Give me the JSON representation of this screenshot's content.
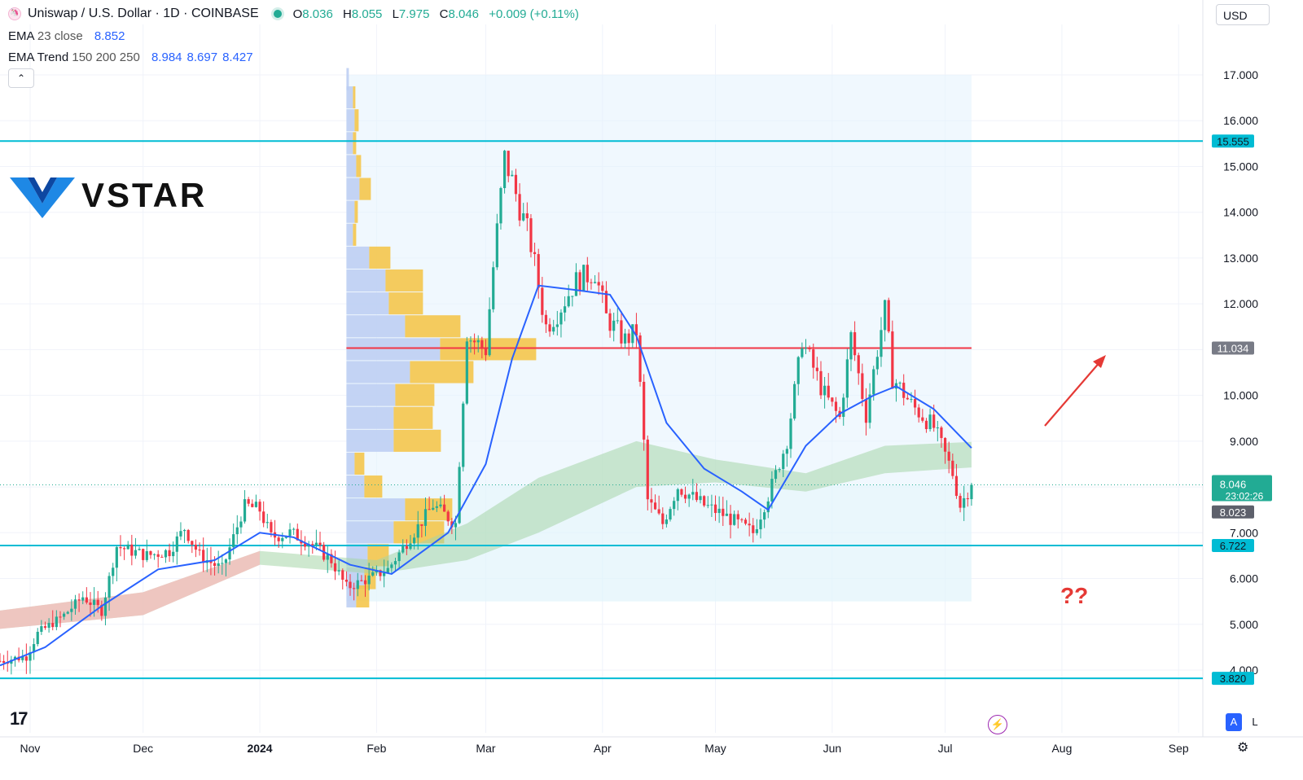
{
  "header": {
    "symbol": "Uniswap / U.S. Dollar · 1D · COINBASE",
    "o_label": "O",
    "o_value": "8.036",
    "h_label": "H",
    "h_value": "8.055",
    "l_label": "L",
    "l_value": "7.975",
    "c_label": "C",
    "c_value": "8.046",
    "change": "+0.009 (+0.11%)"
  },
  "indicators": {
    "ema_name": "EMA",
    "ema_params": "23 close",
    "ema_value": "8.852",
    "trend_name": "EMA Trend",
    "trend_params": "150 200 250",
    "trend_v1": "8.984",
    "trend_v2": "8.697",
    "trend_v3": "8.427"
  },
  "currency": "USD",
  "watermark": "VSTAR",
  "tv_logo": "17",
  "annotation": "??",
  "buttons": {
    "auto": "A",
    "log": "L"
  },
  "colors": {
    "up": "#22ab94",
    "down": "#f23645",
    "ema": "#2962ff",
    "level": "#00bcd4",
    "poc": "#f23645",
    "cloud": "#a5d6a7"
  },
  "chart_data": {
    "type": "candlestick",
    "y_axis": {
      "min": 3.8,
      "max": 17.0,
      "ticks": [
        "17.000",
        "16.000",
        "15.000",
        "14.000",
        "13.000",
        "12.000",
        "10.000",
        "9.000",
        "7.000",
        "6.000",
        "5.000",
        "4.000"
      ]
    },
    "x_axis": {
      "range": [
        "2023-10-24",
        "2024-09-07"
      ],
      "ticks": [
        {
          "label": "Nov",
          "date": "2023-11-01"
        },
        {
          "label": "Dec",
          "date": "2023-12-01"
        },
        {
          "label": "2024",
          "date": "2024-01-01",
          "bold": true
        },
        {
          "label": "Feb",
          "date": "2024-02-01"
        },
        {
          "label": "Mar",
          "date": "2024-03-01"
        },
        {
          "label": "Apr",
          "date": "2024-04-01"
        },
        {
          "label": "May",
          "date": "2024-05-01"
        },
        {
          "label": "Jun",
          "date": "2024-06-01"
        },
        {
          "label": "Jul",
          "date": "2024-07-01"
        },
        {
          "label": "Aug",
          "date": "2024-08-01"
        },
        {
          "label": "Sep",
          "date": "2024-09-01"
        }
      ]
    },
    "price_levels": [
      {
        "value": 15.555,
        "label": "15.555",
        "color": "#00bcd4"
      },
      {
        "value": 6.722,
        "label": "6.722",
        "color": "#00bcd4"
      },
      {
        "value": 3.82,
        "label": "3.820",
        "color": "#00bcd4"
      }
    ],
    "poc_level": {
      "value": 11.034,
      "label": "11.034"
    },
    "last_price": {
      "value": 8.046,
      "label": "8.046",
      "countdown": "23:02:26"
    },
    "prev_close": {
      "value": 8.023,
      "label": "8.023"
    },
    "close_series": [
      [
        "2023-10-24",
        4.2
      ],
      [
        "2023-10-31",
        4.3
      ],
      [
        "2023-11-03",
        4.8
      ],
      [
        "2023-11-10",
        5.2
      ],
      [
        "2023-11-15",
        5.6
      ],
      [
        "2023-11-20",
        5.3
      ],
      [
        "2023-11-24",
        6.7
      ],
      [
        "2023-12-02",
        6.5
      ],
      [
        "2023-12-08",
        6.6
      ],
      [
        "2023-12-12",
        7.1
      ],
      [
        "2023-12-16",
        6.5
      ],
      [
        "2023-12-22",
        6.2
      ],
      [
        "2023-12-28",
        7.6
      ],
      [
        "2024-01-01",
        7.5
      ],
      [
        "2024-01-04",
        6.9
      ],
      [
        "2024-01-09",
        7.0
      ],
      [
        "2024-01-14",
        6.8
      ],
      [
        "2024-01-20",
        6.4
      ],
      [
        "2024-01-24",
        5.8
      ],
      [
        "2024-01-30",
        6.0
      ],
      [
        "2024-02-04",
        6.2
      ],
      [
        "2024-02-10",
        6.9
      ],
      [
        "2024-02-16",
        7.6
      ],
      [
        "2024-02-22",
        7.2
      ],
      [
        "2024-02-25",
        11.3
      ],
      [
        "2024-03-01",
        11.0
      ],
      [
        "2024-03-03",
        12.8
      ],
      [
        "2024-03-06",
        15.2
      ],
      [
        "2024-03-09",
        14.4
      ],
      [
        "2024-03-13",
        13.3
      ],
      [
        "2024-03-17",
        11.5
      ],
      [
        "2024-03-20",
        11.8
      ],
      [
        "2024-03-25",
        12.5
      ],
      [
        "2024-03-30",
        12.7
      ],
      [
        "2024-04-02",
        11.7
      ],
      [
        "2024-04-07",
        11.2
      ],
      [
        "2024-04-10",
        11.4
      ],
      [
        "2024-04-13",
        7.7
      ],
      [
        "2024-04-17",
        7.2
      ],
      [
        "2024-04-21",
        8.0
      ],
      [
        "2024-04-28",
        7.6
      ],
      [
        "2024-05-03",
        7.4
      ],
      [
        "2024-05-11",
        7.0
      ],
      [
        "2024-05-15",
        7.8
      ],
      [
        "2024-05-20",
        9.0
      ],
      [
        "2024-05-24",
        11.2
      ],
      [
        "2024-05-30",
        10.0
      ],
      [
        "2024-06-03",
        9.5
      ],
      [
        "2024-06-06",
        11.3
      ],
      [
        "2024-06-10",
        9.6
      ],
      [
        "2024-06-15",
        11.9
      ],
      [
        "2024-06-17",
        10.4
      ],
      [
        "2024-06-22",
        9.8
      ],
      [
        "2024-06-28",
        9.3
      ],
      [
        "2024-07-03",
        8.3
      ],
      [
        "2024-07-05",
        7.6
      ],
      [
        "2024-07-08",
        8.046
      ]
    ],
    "ema23_series": [
      [
        "2023-10-24",
        4.1
      ],
      [
        "2023-11-05",
        4.5
      ],
      [
        "2023-11-20",
        5.4
      ],
      [
        "2023-12-05",
        6.2
      ],
      [
        "2023-12-20",
        6.4
      ],
      [
        "2024-01-01",
        7.0
      ],
      [
        "2024-01-10",
        6.9
      ],
      [
        "2024-01-25",
        6.3
      ],
      [
        "2024-02-05",
        6.1
      ],
      [
        "2024-02-20",
        7.0
      ],
      [
        "2024-03-01",
        8.5
      ],
      [
        "2024-03-08",
        10.8
      ],
      [
        "2024-03-15",
        12.4
      ],
      [
        "2024-03-25",
        12.3
      ],
      [
        "2024-04-03",
        12.2
      ],
      [
        "2024-04-10",
        11.3
      ],
      [
        "2024-04-18",
        9.4
      ],
      [
        "2024-04-28",
        8.4
      ],
      [
        "2024-05-08",
        7.9
      ],
      [
        "2024-05-15",
        7.5
      ],
      [
        "2024-05-25",
        8.9
      ],
      [
        "2024-06-03",
        9.6
      ],
      [
        "2024-06-12",
        10.0
      ],
      [
        "2024-06-18",
        10.2
      ],
      [
        "2024-06-28",
        9.7
      ],
      [
        "2024-07-08",
        8.852
      ]
    ],
    "trend_cloud": [
      [
        "2023-10-24",
        5.3,
        4.9
      ],
      [
        "2023-12-01",
        5.7,
        5.2
      ],
      [
        "2024-01-01",
        6.6,
        6.3
      ],
      [
        "2024-02-01",
        6.4,
        6.1
      ],
      [
        "2024-02-25",
        7.2,
        6.4
      ],
      [
        "2024-03-15",
        8.2,
        7.0
      ],
      [
        "2024-04-10",
        9.0,
        8.0
      ],
      [
        "2024-05-01",
        8.6,
        8.1
      ],
      [
        "2024-05-25",
        8.3,
        7.9
      ],
      [
        "2024-06-15",
        8.9,
        8.3
      ],
      [
        "2024-07-08",
        8.984,
        8.427
      ]
    ],
    "volume_profile": {
      "range_start": "2024-01-24",
      "range_end": "2024-07-08",
      "price_top": 17.0,
      "price_bottom": 5.5
    }
  }
}
